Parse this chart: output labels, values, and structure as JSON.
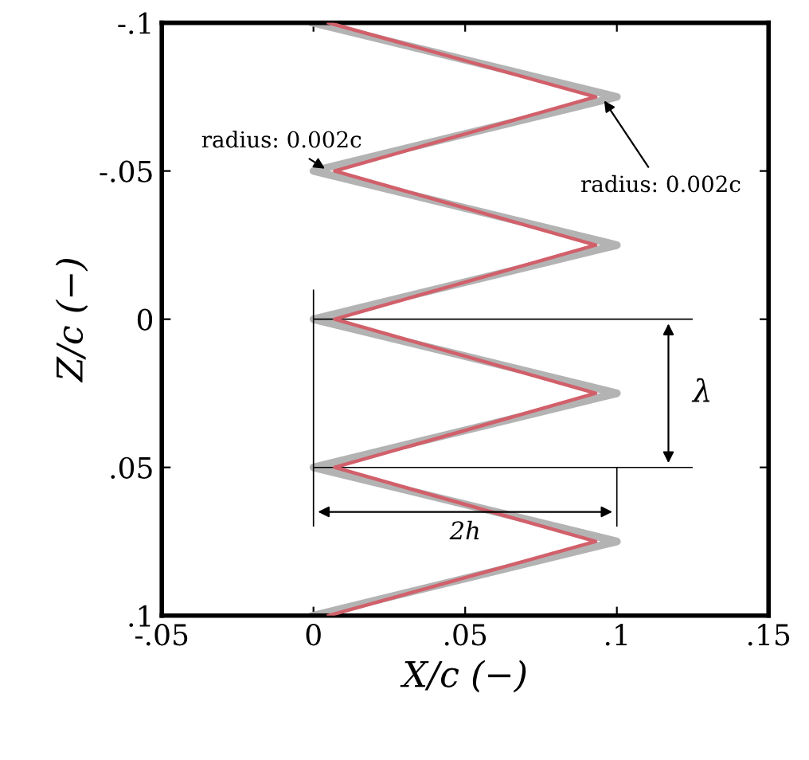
{
  "chart_data": {
    "type": "line",
    "xlabel": "X/c (−)",
    "ylabel": "Z/c (−)",
    "x": [
      -0.1,
      -0.075,
      -0.05,
      -0.025,
      0,
      0.025,
      0.05,
      0.075,
      0.1
    ],
    "series": [
      {
        "color": "#b3b3b3",
        "values": [
          0,
          0.1,
          0,
          0.1,
          0,
          0.1,
          0,
          0.1,
          0
        ]
      },
      {
        "color": "#d1606a",
        "values": [
          0.005,
          0.093,
          0.007,
          0.093,
          0.007,
          0.093,
          0.007,
          0.093,
          0.005
        ]
      }
    ],
    "orientation": "horizontal",
    "xlim": [
      -0.05,
      0.15
    ],
    "ylim": [
      0.1,
      -0.1
    ],
    "xticks": [
      {
        "value": -0.05,
        "label": "-.05"
      },
      0,
      {
        "value": 0.05,
        "label": ".05"
      },
      {
        "value": 0.1,
        "label": ".1"
      },
      {
        "value": 0.15,
        "label": ".15"
      }
    ],
    "yticks": [
      {
        "value": -0.1,
        "label": "-.1"
      },
      {
        "value": -0.05,
        "label": "-.05"
      },
      0,
      {
        "value": 0.05,
        "label": ".05"
      },
      {
        "value": 0.1,
        "label": ".1"
      }
    ],
    "annotations": [
      {
        "text": "radius: 0.002c",
        "x": 0.005,
        "y": -0.05
      },
      {
        "text": "radius: 0.002c",
        "x": 0.095,
        "y": -0.075
      },
      "λ",
      "2h"
    ],
    "ref_lines": [
      {
        "axis": "y",
        "value": 0,
        "color": "#000000"
      },
      {
        "axis": "y",
        "value": 0.05,
        "color": "#000000"
      },
      {
        "axis": "x",
        "value": 0,
        "color": "#000000"
      },
      {
        "axis": "x",
        "value": 0.1,
        "color": "#000000"
      }
    ],
    "grid": false,
    "legend": false,
    "marker": "none",
    "line_style": "solid"
  }
}
